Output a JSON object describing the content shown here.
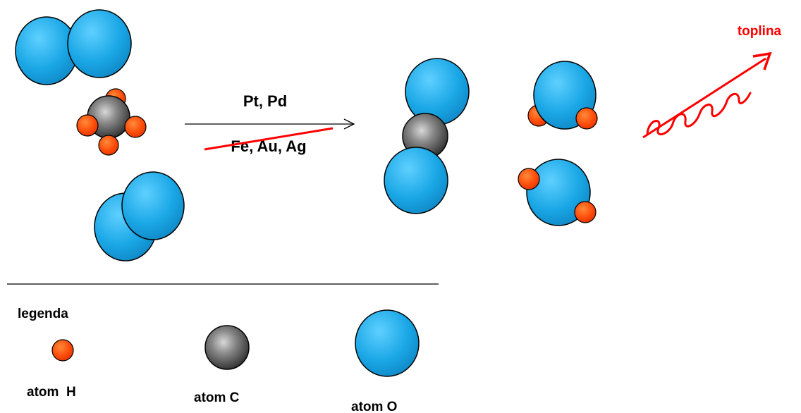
{
  "reaction": {
    "catalysts_active": "Pt, Pd",
    "catalysts_inactive": "Fe, Au, Ag",
    "heat_label": "toplina"
  },
  "legend": {
    "title": "legenda",
    "hydrogen_label": "atom  H",
    "carbon_label": "atom C",
    "oxygen_label": "atom O"
  },
  "colors": {
    "oxygen": "#1aa7e6",
    "hydrogen": "#ff4a08",
    "carbon": "#555555",
    "heat": "#ff0000",
    "strike": "#ff0000"
  }
}
